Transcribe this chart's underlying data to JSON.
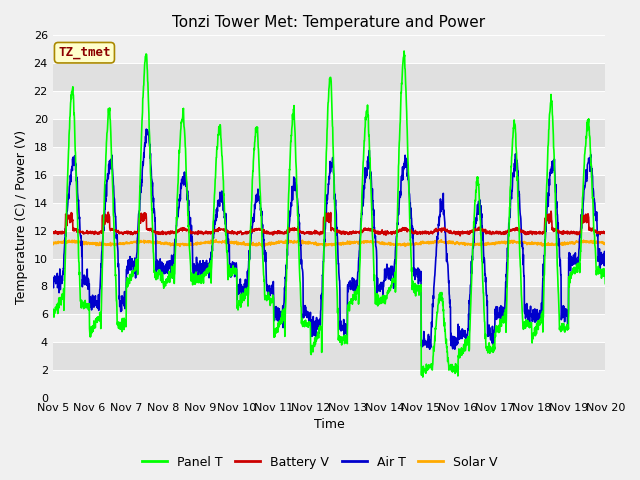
{
  "title": "Tonzi Tower Met: Temperature and Power",
  "xlabel": "Time",
  "ylabel": "Temperature (C) / Power (V)",
  "ylim": [
    0,
    26
  ],
  "xlim_days": [
    5,
    20
  ],
  "xtick_labels": [
    "Nov 5",
    "Nov 6",
    "Nov 7",
    "Nov 8",
    "Nov 9",
    "Nov 10",
    "Nov 11",
    "Nov 12",
    "Nov 13",
    "Nov 14",
    "Nov 15",
    "Nov 16",
    "Nov 17",
    "Nov 18",
    "Nov 19",
    "Nov 20"
  ],
  "legend_label": "TZ_tmet",
  "series_labels": [
    "Panel T",
    "Battery V",
    "Air T",
    "Solar V"
  ],
  "series_colors": [
    "#00ff00",
    "#cc0000",
    "#0000cc",
    "#ffaa00"
  ],
  "title_fontsize": 11,
  "axis_fontsize": 9,
  "tick_fontsize": 8,
  "legend_fontsize": 9,
  "line_width": 1.2,
  "fig_bg": "#f0f0f0",
  "plot_bg": "#e8e8e8",
  "stripe_light": "#f0f0f0",
  "stripe_dark": "#e0e0e0",
  "grid_color": "#ffffff"
}
